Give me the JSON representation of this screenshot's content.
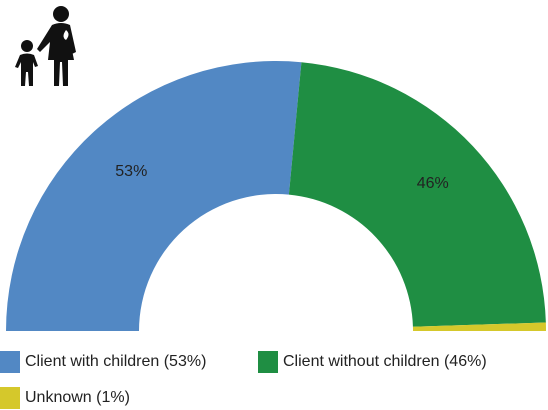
{
  "chart_data": {
    "type": "semidonut",
    "series": [
      {
        "name": "Client with children (53%)",
        "color": "#5288c4",
        "values": [
          53
        ],
        "value_labels": [
          "53%"
        ]
      },
      {
        "name": "Client without children (46%)",
        "color": "#1f8e43",
        "values": [
          46
        ],
        "value_labels": [
          "46%"
        ]
      },
      {
        "name": "Unknown (1%)",
        "color": "#d5c82b",
        "values": [
          1
        ]
      }
    ],
    "legend": "bottom"
  }
}
